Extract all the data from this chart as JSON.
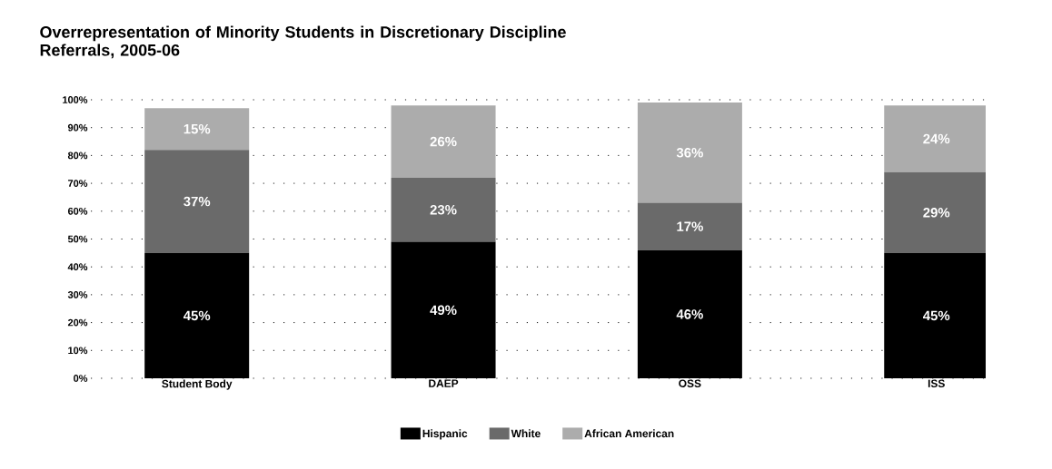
{
  "chart_data": {
    "type": "bar",
    "stacked": true,
    "title": "Overrepresentation of Minority Students in Discretionary Discipline Referrals, 2005-06",
    "categories": [
      "Student Body",
      "DAEP",
      "OSS",
      "ISS"
    ],
    "series": [
      {
        "name": "Hispanic",
        "color": "#000000",
        "values": [
          45,
          49,
          46,
          45
        ],
        "value_labels": [
          "45%",
          "49%",
          "46%",
          "45%"
        ]
      },
      {
        "name": "White",
        "color": "#6a6a6a",
        "values": [
          37,
          23,
          17,
          29
        ],
        "value_labels": [
          "37%",
          "23%",
          "17%",
          "29%"
        ]
      },
      {
        "name": "African American",
        "color": "#acacac",
        "values": [
          15,
          26,
          36,
          24
        ],
        "value_labels": [
          "15%",
          "26%",
          "36%",
          "24%"
        ]
      }
    ],
    "ylim": [
      0,
      100
    ],
    "yticks": [
      {
        "value": 0,
        "label": "0%"
      },
      {
        "value": 10,
        "label": "10%"
      },
      {
        "value": 20,
        "label": "20%"
      },
      {
        "value": 30,
        "label": "30%"
      },
      {
        "value": 40,
        "label": "40%"
      },
      {
        "value": 50,
        "label": "50%"
      },
      {
        "value": 60,
        "label": "60%"
      },
      {
        "value": 70,
        "label": "70%"
      },
      {
        "value": 80,
        "label": "80%"
      },
      {
        "value": 90,
        "label": "90%"
      },
      {
        "value": 100,
        "label": "100%"
      }
    ],
    "grid": "y",
    "legend": "bottom"
  }
}
